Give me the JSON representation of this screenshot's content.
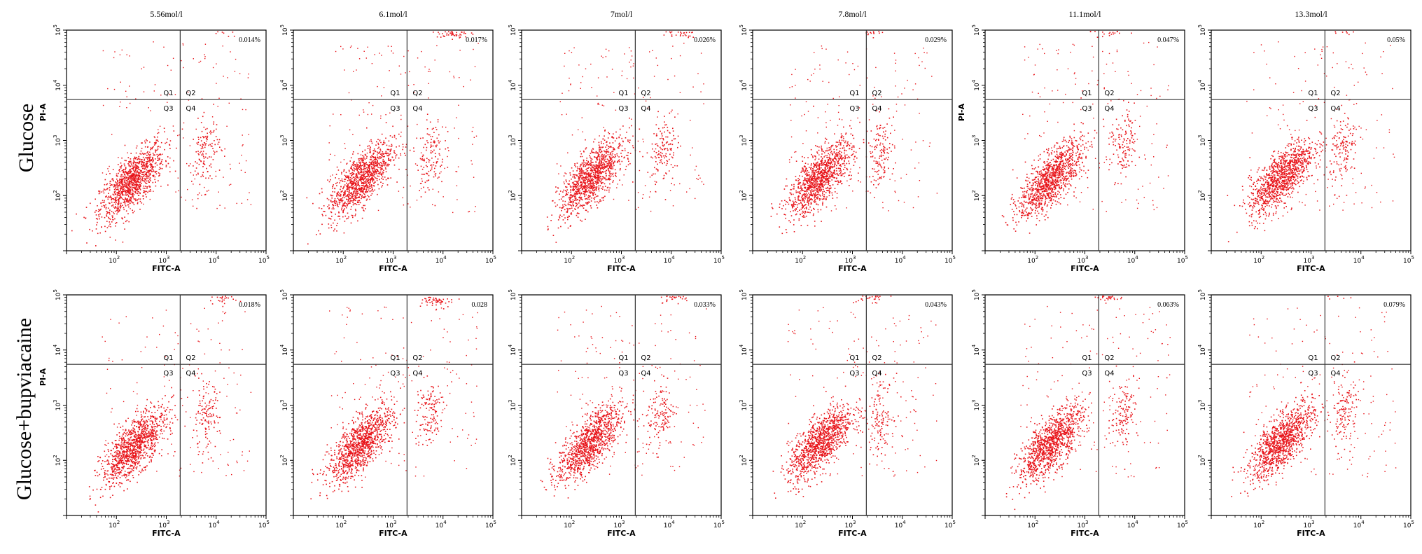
{
  "figure": {
    "row_labels": [
      "Glucose",
      "Glucose+bupviacaine"
    ],
    "colors": {
      "points": "#e8141a",
      "frame": "#000000",
      "gate": "#333333"
    }
  },
  "chart_data": [
    {
      "type": "scatter",
      "row": 0,
      "col": 0,
      "title": "5.56mol/l",
      "q2_percent": "0.014%",
      "xlabel": "FITC-A",
      "ylabel": "PI-A",
      "scale": "log",
      "xlim": [
        10,
        100000
      ],
      "ylim": [
        10,
        100000
      ],
      "quadrants": [
        "Q1",
        "Q2",
        "Q3",
        "Q4"
      ],
      "gate": {
        "x": 1900,
        "y": 5500
      },
      "clusters": [
        {
          "name": "Q3",
          "center": [
            200,
            180
          ]
        },
        {
          "name": "Q4",
          "center": [
            6000,
            600
          ]
        },
        {
          "name": "Q2",
          "center": [
            15000,
            110000
          ]
        }
      ]
    },
    {
      "type": "scatter",
      "row": 0,
      "col": 1,
      "title": "6.1mol/l",
      "q2_percent": "0.017%",
      "xlabel": "FITC-A",
      "ylabel": "",
      "scale": "log",
      "xlim": [
        10,
        100000
      ],
      "ylim": [
        10,
        100000
      ],
      "quadrants": [
        "Q1",
        "Q2",
        "Q3",
        "Q4"
      ],
      "gate": {
        "x": 1900,
        "y": 5500
      },
      "clusters": [
        {
          "name": "Q3",
          "center": [
            220,
            200
          ]
        },
        {
          "name": "Q4",
          "center": [
            5500,
            550
          ]
        },
        {
          "name": "Q2",
          "center": [
            15000,
            90000
          ]
        }
      ]
    },
    {
      "type": "scatter",
      "row": 0,
      "col": 2,
      "title": "7mol/l",
      "q2_percent": "0.026%",
      "xlabel": "FITC-A",
      "ylabel": "",
      "scale": "log",
      "xlim": [
        10,
        100000
      ],
      "ylim": [
        10,
        100000
      ],
      "quadrants": [
        "Q1",
        "Q2",
        "Q3",
        "Q4"
      ],
      "gate": {
        "x": 1900,
        "y": 5500
      },
      "clusters": [
        {
          "name": "Q3",
          "center": [
            250,
            220
          ]
        },
        {
          "name": "Q4",
          "center": [
            7000,
            700
          ]
        },
        {
          "name": "Q2",
          "center": [
            15000,
            100000
          ]
        }
      ]
    },
    {
      "type": "scatter",
      "row": 0,
      "col": 3,
      "title": "7.8mol/l",
      "q2_percent": "0.029%",
      "xlabel": "FITC-A",
      "ylabel": "",
      "scale": "log",
      "xlim": [
        10,
        100000
      ],
      "ylim": [
        10,
        100000
      ],
      "quadrants": [
        "Q1",
        "Q2",
        "Q3",
        "Q4"
      ],
      "gate": {
        "x": 1900,
        "y": 5500
      },
      "clusters": [
        {
          "name": "Q3",
          "center": [
            220,
            210
          ]
        },
        {
          "name": "Q4",
          "center": [
            3500,
            600
          ]
        },
        {
          "name": "Q2",
          "center": [
            2500,
            110000
          ]
        }
      ]
    },
    {
      "type": "scatter",
      "row": 0,
      "col": 4,
      "title": "11.1mol/l",
      "q2_percent": "0.047%",
      "xlabel": "FITC-A",
      "ylabel": "PI-A",
      "scale": "log",
      "xlim": [
        10,
        100000
      ],
      "ylim": [
        10,
        100000
      ],
      "quadrants": [
        "Q1",
        "Q2",
        "Q3",
        "Q4"
      ],
      "gate": {
        "x": 1900,
        "y": 5500
      },
      "clusters": [
        {
          "name": "Q3",
          "center": [
            200,
            200
          ]
        },
        {
          "name": "Q4",
          "center": [
            6000,
            800
          ]
        },
        {
          "name": "Q2",
          "center": [
            3000,
            100000
          ]
        }
      ]
    },
    {
      "type": "scatter",
      "row": 0,
      "col": 5,
      "title": "13.3mol/l",
      "q2_percent": "0.05%",
      "xlabel": "FITC-A",
      "ylabel": "",
      "scale": "log",
      "xlim": [
        10,
        100000
      ],
      "ylim": [
        10,
        100000
      ],
      "quadrants": [
        "Q1",
        "Q2",
        "Q3",
        "Q4"
      ],
      "gate": {
        "x": 1900,
        "y": 5500
      },
      "clusters": [
        {
          "name": "Q3",
          "center": [
            250,
            220
          ]
        },
        {
          "name": "Q4",
          "center": [
            4500,
            700
          ]
        },
        {
          "name": "Q2",
          "center": [
            4000,
            110000
          ]
        }
      ]
    },
    {
      "type": "scatter",
      "row": 1,
      "col": 0,
      "title": "",
      "q2_percent": "0.018%",
      "xlabel": "FITC-A",
      "ylabel": "PI-A",
      "scale": "log",
      "xlim": [
        10,
        100000
      ],
      "ylim": [
        10,
        100000
      ],
      "quadrants": [
        "Q1",
        "Q2",
        "Q3",
        "Q4"
      ],
      "gate": {
        "x": 1900,
        "y": 5500
      },
      "clusters": [
        {
          "name": "Q3",
          "center": [
            220,
            180
          ]
        },
        {
          "name": "Q4",
          "center": [
            6000,
            550
          ]
        },
        {
          "name": "Q2",
          "center": [
            15000,
            100000
          ]
        }
      ]
    },
    {
      "type": "scatter",
      "row": 1,
      "col": 1,
      "title": "",
      "q2_percent": "0.028",
      "xlabel": "FITC-A",
      "ylabel": "",
      "scale": "log",
      "xlim": [
        10,
        100000
      ],
      "ylim": [
        10,
        100000
      ],
      "quadrants": [
        "Q1",
        "Q2",
        "Q3",
        "Q4"
      ],
      "gate": {
        "x": 1900,
        "y": 5500
      },
      "clusters": [
        {
          "name": "Q3",
          "center": [
            220,
            200
          ]
        },
        {
          "name": "Q4",
          "center": [
            5000,
            700
          ]
        },
        {
          "name": "Q2",
          "center": [
            8000,
            80000
          ]
        }
      ]
    },
    {
      "type": "scatter",
      "row": 1,
      "col": 2,
      "title": "",
      "q2_percent": "0.033%",
      "xlabel": "FITC-A",
      "ylabel": "",
      "scale": "log",
      "xlim": [
        10,
        100000
      ],
      "ylim": [
        10,
        100000
      ],
      "quadrants": [
        "Q1",
        "Q2",
        "Q3",
        "Q4"
      ],
      "gate": {
        "x": 1900,
        "y": 5500
      },
      "clusters": [
        {
          "name": "Q3",
          "center": [
            220,
            200
          ]
        },
        {
          "name": "Q4",
          "center": [
            6000,
            700
          ]
        },
        {
          "name": "Q2",
          "center": [
            12000,
            100000
          ]
        }
      ]
    },
    {
      "type": "scatter",
      "row": 1,
      "col": 3,
      "title": "",
      "q2_percent": "0.043%",
      "xlabel": "FITC-A",
      "ylabel": "",
      "scale": "log",
      "xlim": [
        10,
        100000
      ],
      "ylim": [
        10,
        100000
      ],
      "quadrants": [
        "Q1",
        "Q2",
        "Q3",
        "Q4"
      ],
      "gate": {
        "x": 1900,
        "y": 5500
      },
      "clusters": [
        {
          "name": "Q3",
          "center": [
            220,
            210
          ]
        },
        {
          "name": "Q4",
          "center": [
            3500,
            600
          ]
        },
        {
          "name": "Q2",
          "center": [
            2500,
            100000
          ]
        }
      ]
    },
    {
      "type": "scatter",
      "row": 1,
      "col": 4,
      "title": "",
      "q2_percent": "0.063%",
      "xlabel": "FITC-A",
      "ylabel": "",
      "scale": "log",
      "xlim": [
        10,
        100000
      ],
      "ylim": [
        10,
        100000
      ],
      "quadrants": [
        "Q1",
        "Q2",
        "Q3",
        "Q4"
      ],
      "gate": {
        "x": 1900,
        "y": 5500
      },
      "clusters": [
        {
          "name": "Q3",
          "center": [
            200,
            200
          ]
        },
        {
          "name": "Q4",
          "center": [
            6000,
            800
          ]
        },
        {
          "name": "Q2",
          "center": [
            3000,
            100000
          ]
        }
      ]
    },
    {
      "type": "scatter",
      "row": 1,
      "col": 5,
      "title": "",
      "q2_percent": "0.079%",
      "xlabel": "FITC-A",
      "ylabel": "",
      "scale": "log",
      "xlim": [
        10,
        100000
      ],
      "ylim": [
        10,
        100000
      ],
      "quadrants": [
        "Q1",
        "Q2",
        "Q3",
        "Q4"
      ],
      "gate": {
        "x": 1900,
        "y": 5500
      },
      "clusters": [
        {
          "name": "Q3",
          "center": [
            250,
            220
          ]
        },
        {
          "name": "Q4",
          "center": [
            4500,
            700
          ]
        },
        {
          "name": "Q2",
          "center": [
            4000,
            110000
          ]
        }
      ]
    }
  ]
}
